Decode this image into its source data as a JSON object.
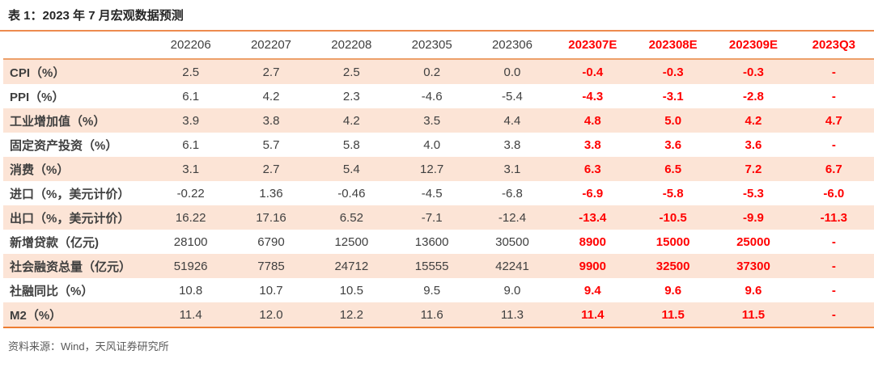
{
  "title": "表 1：2023 年 7 月宏观数据预测",
  "colors": {
    "accent_orange": "#ed7d31",
    "row_stripe": "#fce4d6",
    "forecast_red": "#ff0000",
    "text_dark": "#404040"
  },
  "table": {
    "columns": [
      "",
      "202206",
      "202207",
      "202208",
      "202305",
      "202306",
      "202307E",
      "202308E",
      "202309E",
      "2023Q3"
    ],
    "forecast_column_start": 6,
    "rows": [
      {
        "label": "CPI（%）",
        "values": [
          "2.5",
          "2.7",
          "2.5",
          "0.2",
          "0.0",
          "-0.4",
          "-0.3",
          "-0.3",
          "-"
        ]
      },
      {
        "label": "PPI（%）",
        "values": [
          "6.1",
          "4.2",
          "2.3",
          "-4.6",
          "-5.4",
          "-4.3",
          "-3.1",
          "-2.8",
          "-"
        ]
      },
      {
        "label": "工业增加值（%）",
        "values": [
          "3.9",
          "3.8",
          "4.2",
          "3.5",
          "4.4",
          "4.8",
          "5.0",
          "4.2",
          "4.7"
        ]
      },
      {
        "label": "固定资产投资（%）",
        "values": [
          "6.1",
          "5.7",
          "5.8",
          "4.0",
          "3.8",
          "3.8",
          "3.6",
          "3.6",
          "-"
        ]
      },
      {
        "label": "消费（%）",
        "values": [
          "3.1",
          "2.7",
          "5.4",
          "12.7",
          "3.1",
          "6.3",
          "6.5",
          "7.2",
          "6.7"
        ]
      },
      {
        "label": "进口（%，美元计价）",
        "values": [
          "-0.22",
          "1.36",
          "-0.46",
          "-4.5",
          "-6.8",
          "-6.9",
          "-5.8",
          "-5.3",
          "-6.0"
        ]
      },
      {
        "label": "出口（%，美元计价）",
        "values": [
          "16.22",
          "17.16",
          "6.52",
          "-7.1",
          "-12.4",
          "-13.4",
          "-10.5",
          "-9.9",
          "-11.3"
        ]
      },
      {
        "label": "新增贷款（亿元)",
        "values": [
          "28100",
          "6790",
          "12500",
          "13600",
          "30500",
          "8900",
          "15000",
          "25000",
          "-"
        ]
      },
      {
        "label": "社会融资总量（亿元）",
        "values": [
          "51926",
          "7785",
          "24712",
          "15555",
          "42241",
          "9900",
          "32500",
          "37300",
          "-"
        ]
      },
      {
        "label": "社融同比（%）",
        "values": [
          "10.8",
          "10.7",
          "10.5",
          "9.5",
          "9.0",
          "9.4",
          "9.6",
          "9.6",
          "-"
        ]
      },
      {
        "label": "M2（%）",
        "values": [
          "11.4",
          "12.0",
          "12.2",
          "11.6",
          "11.3",
          "11.4",
          "11.5",
          "11.5",
          "-"
        ]
      }
    ]
  },
  "footer": {
    "source": "资料来源：Wind，天风证券研究所"
  }
}
